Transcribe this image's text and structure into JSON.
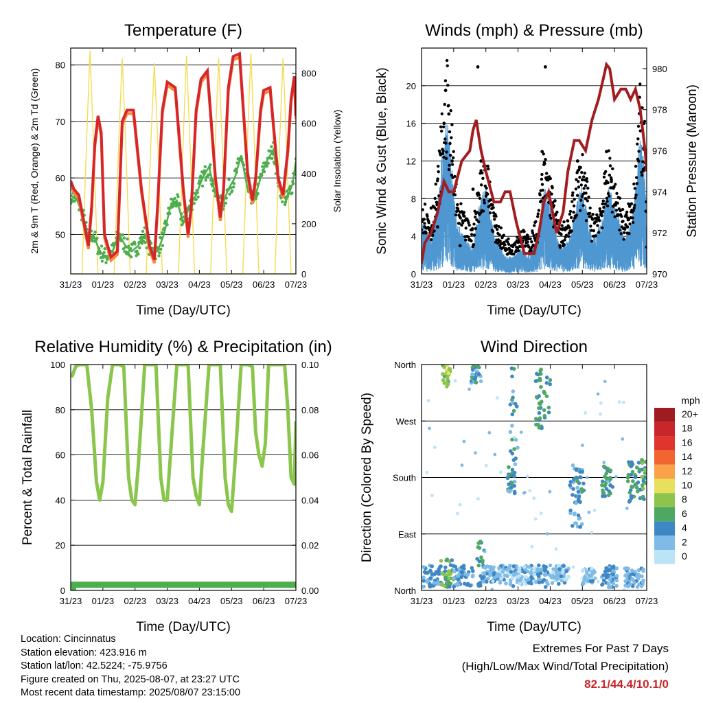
{
  "colors": {
    "red": "#d7262a",
    "orange": "#f58a3c",
    "green": "#4cae4c",
    "yellow": "#f5dc50",
    "blue": "#4f97d1",
    "black": "#000000",
    "maroon": "#a31c1f",
    "rh_green": "#8ac64c",
    "precip_green": "#4cae4c"
  },
  "footer": {
    "location": "Location: Cincinnatus",
    "elevation": "Station elevation: 423.916 m",
    "latlon": "Station lat/lon: 42.5224; -75.9756",
    "created": "Figure created on Thu, 2025-08-07, at 23:27 UTC",
    "timestamp": "Most recent data timestamp: 2025/08/07 23:15:00",
    "extremes_title_1": "Extremes For Past 7 Days",
    "extremes_title_2": "(High/Low/Max Wind/Total Precipitation)",
    "extremes_values": "82.1/44.4/10.1/0"
  },
  "chart_data": [
    {
      "id": "temperature",
      "type": "line",
      "title": "Temperature (F)",
      "xlabel": "Time (Day/UTC)",
      "ylabel": "2m & 9m T (Red, Orange) & 2m Td (Green)",
      "ylabel_right": "Solar Insolation (Yellow)",
      "x_ticks": [
        "31/23",
        "01/23",
        "02/23",
        "03/23",
        "04/23",
        "05/23",
        "06/23",
        "07/23"
      ],
      "xlim": [
        0,
        7
      ],
      "ylim": [
        43,
        83
      ],
      "y_ticks": [
        50,
        60,
        70,
        80
      ],
      "ylim_right": [
        0,
        900
      ],
      "y_ticks_right": [
        0,
        200,
        400,
        600,
        800
      ],
      "grid": true,
      "series": [
        {
          "id": "t2m",
          "x": [
            0,
            0.1,
            0.25,
            0.45,
            0.55,
            0.65,
            0.75,
            0.85,
            0.95,
            1.05,
            1.25,
            1.45,
            1.6,
            1.75,
            1.95,
            2.2,
            2.45,
            2.6,
            2.7,
            2.85,
            3.0,
            3.25,
            3.5,
            3.65,
            3.75,
            3.9,
            4.05,
            4.25,
            4.5,
            4.65,
            4.75,
            4.9,
            5.05,
            5.25,
            5.5,
            5.65,
            5.75,
            5.9,
            6.0,
            6.2,
            6.45,
            6.6,
            6.75,
            6.85,
            6.95,
            7.0
          ],
          "y": [
            59.5,
            58,
            57,
            51,
            48,
            55,
            66,
            71,
            68,
            50,
            46,
            47,
            70,
            72,
            72,
            58,
            48,
            45.5,
            55,
            72,
            77,
            76,
            58,
            50,
            55,
            72,
            77.5,
            79,
            60,
            53,
            58,
            76,
            81.5,
            82,
            61,
            56,
            60,
            72,
            75.5,
            76,
            60,
            57,
            65,
            74,
            78,
            71
          ]
        },
        {
          "id": "td2m",
          "x": [
            0,
            0.2,
            0.4,
            0.55,
            0.7,
            0.9,
            1.1,
            1.3,
            1.5,
            1.7,
            1.9,
            2.1,
            2.3,
            2.5,
            2.7,
            2.9,
            3.1,
            3.3,
            3.5,
            3.7,
            3.9,
            4.1,
            4.3,
            4.5,
            4.7,
            4.9,
            5.1,
            5.3,
            5.5,
            5.7,
            5.9,
            6.1,
            6.3,
            6.5,
            6.7,
            6.9,
            7.0
          ],
          "y": [
            57,
            56,
            53,
            49,
            50,
            47,
            46,
            47,
            50,
            48,
            47,
            48,
            50,
            47,
            47,
            50,
            55,
            56,
            52,
            55,
            57,
            60,
            62,
            57,
            55,
            58,
            60,
            64,
            58,
            56,
            60,
            63,
            65,
            58,
            56,
            59,
            63
          ]
        },
        {
          "id": "solar",
          "x": [
            0,
            0.35,
            0.5,
            0.6,
            0.7,
            0.85,
            1.35,
            1.5,
            1.6,
            1.7,
            1.85,
            2.35,
            2.5,
            2.6,
            2.7,
            2.85,
            3.35,
            3.5,
            3.6,
            3.7,
            3.85,
            4.35,
            4.5,
            4.6,
            4.7,
            4.85,
            5.35,
            5.5,
            5.6,
            5.7,
            5.85,
            6.35,
            6.5,
            6.6,
            6.7,
            6.85,
            7.0
          ],
          "y": [
            0,
            0,
            550,
            890,
            550,
            0,
            0,
            550,
            860,
            550,
            0,
            0,
            550,
            840,
            550,
            0,
            0,
            550,
            870,
            550,
            0,
            0,
            550,
            860,
            550,
            0,
            0,
            550,
            880,
            550,
            0,
            0,
            550,
            860,
            550,
            0,
            0
          ]
        }
      ]
    },
    {
      "id": "winds",
      "type": "line",
      "title": "Winds (mph) & Pressure (mb)",
      "xlabel": "Time (Day/UTC)",
      "ylabel": "Sonic Wind & Gust (Blue, Black)",
      "ylabel_right": "Station Pressure (Maroon)",
      "x_ticks": [
        "31/23",
        "01/23",
        "02/23",
        "03/23",
        "04/23",
        "05/23",
        "06/23",
        "07/23"
      ],
      "xlim": [
        0,
        7
      ],
      "ylim": [
        0,
        24
      ],
      "y_ticks": [
        0,
        4,
        8,
        12,
        16,
        20
      ],
      "ylim_right": [
        970,
        981
      ],
      "y_ticks_right": [
        970,
        972,
        974,
        976,
        978,
        980
      ],
      "grid": true,
      "series": [
        {
          "id": "wind",
          "x": [
            0,
            0.3,
            0.5,
            0.65,
            0.8,
            0.95,
            1.1,
            1.35,
            1.6,
            1.8,
            2.0,
            2.3,
            2.6,
            2.85,
            3.1,
            3.35,
            3.6,
            3.8,
            4.0,
            4.3,
            4.6,
            4.8,
            5.0,
            5.3,
            5.6,
            5.8,
            6.0,
            6.3,
            6.55,
            6.8,
            6.95,
            7.0
          ],
          "y": [
            3,
            2,
            4,
            7,
            9,
            6,
            3,
            2,
            1.5,
            4,
            5,
            2,
            1,
            1,
            1.5,
            1,
            2,
            5,
            4,
            1.5,
            2,
            4,
            5,
            2,
            3,
            5,
            4,
            2,
            3,
            8,
            6,
            1
          ]
        },
        {
          "id": "gust",
          "x": [
            0.1,
            0.3,
            0.5,
            0.7,
            0.75,
            0.85,
            0.95,
            1.2,
            1.6,
            1.75,
            1.85,
            2.3,
            2.8,
            3.3,
            3.75,
            3.85,
            3.9,
            4.4,
            4.85,
            5.0,
            5.1,
            5.5,
            5.75,
            5.9,
            6.4,
            6.75,
            6.9
          ],
          "y": [
            5,
            7,
            5,
            16,
            19.5,
            17,
            12,
            3,
            9,
            22,
            12,
            5,
            3,
            4,
            13,
            22,
            10,
            3,
            12,
            10,
            8,
            6,
            13,
            10,
            5,
            12,
            11
          ]
        },
        {
          "id": "pressure",
          "x": [
            0,
            0.1,
            0.3,
            0.5,
            0.7,
            0.85,
            1.0,
            1.25,
            1.5,
            1.6,
            1.7,
            1.85,
            2.0,
            2.25,
            2.45,
            2.6,
            2.75,
            2.95,
            3.2,
            3.5,
            3.65,
            3.8,
            3.95,
            4.2,
            4.4,
            4.55,
            4.75,
            4.9,
            5.1,
            5.3,
            5.5,
            5.65,
            5.75,
            5.85,
            6.0,
            6.2,
            6.35,
            6.5,
            6.65,
            6.8,
            6.95,
            7.0
          ],
          "y": [
            970.5,
            971.5,
            972,
            973,
            974.5,
            974,
            974,
            975.5,
            976,
            977,
            977.5,
            976,
            975,
            973.5,
            973.5,
            974,
            974,
            972.5,
            971,
            971,
            972,
            973.5,
            974,
            972,
            973,
            975,
            976.5,
            976.5,
            976,
            977.5,
            978.5,
            979.5,
            980.2,
            980,
            978.5,
            979,
            979,
            978.5,
            979,
            978,
            976,
            975
          ]
        }
      ]
    },
    {
      "id": "humidity",
      "type": "line",
      "title": "Relative Humidity (%) & Precipitation (in)",
      "xlabel": "Time (Day/UTC)",
      "ylabel": "Percent & Total Rainfall",
      "x_ticks": [
        "31/23",
        "01/23",
        "02/23",
        "03/23",
        "04/23",
        "05/23",
        "06/23",
        "07/23"
      ],
      "xlim": [
        0,
        7
      ],
      "ylim": [
        0,
        100
      ],
      "y_ticks": [
        0,
        20,
        40,
        60,
        80,
        100
      ],
      "ylim_right": [
        0,
        0.1
      ],
      "y_ticks_right": [
        "0.00",
        "0.02",
        "0.04",
        "0.06",
        "0.08",
        "0.10"
      ],
      "grid": true,
      "series": [
        {
          "id": "rh",
          "x": [
            0,
            0.05,
            0.15,
            0.25,
            0.4,
            0.5,
            0.65,
            0.8,
            0.9,
            1.0,
            1.15,
            1.3,
            1.5,
            1.65,
            1.8,
            1.9,
            2.0,
            2.1,
            2.3,
            2.5,
            2.65,
            2.8,
            2.9,
            3.0,
            3.1,
            3.3,
            3.5,
            3.65,
            3.8,
            3.9,
            4.0,
            4.1,
            4.3,
            4.5,
            4.65,
            4.8,
            4.9,
            5.0,
            5.1,
            5.3,
            5.5,
            5.65,
            5.75,
            5.85,
            5.95,
            6.05,
            6.15,
            6.3,
            6.5,
            6.65,
            6.75,
            6.85,
            6.95,
            7.0
          ],
          "y": [
            96,
            95,
            99,
            100,
            100,
            100,
            80,
            48,
            40,
            48,
            85,
            100,
            100,
            99,
            50,
            40,
            38,
            55,
            100,
            100,
            100,
            50,
            40,
            40,
            60,
            100,
            100,
            100,
            50,
            42,
            38,
            60,
            100,
            100,
            100,
            50,
            38,
            35,
            55,
            100,
            100,
            99,
            70,
            60,
            55,
            65,
            100,
            100,
            100,
            100,
            80,
            50,
            47,
            75
          ]
        },
        {
          "id": "precip",
          "x": [
            0,
            7
          ],
          "y": [
            0,
            0
          ]
        }
      ]
    },
    {
      "id": "direction",
      "type": "scatter",
      "title": "Wind Direction",
      "xlabel": "Time (Day/UTC)",
      "ylabel": "Direction (Colored By Speed)",
      "x_ticks": [
        "31/23",
        "01/23",
        "02/23",
        "03/23",
        "04/23",
        "05/23",
        "06/23",
        "07/23"
      ],
      "xlim": [
        0,
        7
      ],
      "ylim": [
        0,
        360
      ],
      "y_tick_values": [
        0,
        90,
        180,
        270,
        360
      ],
      "y_tick_labels": [
        "North",
        "East",
        "South",
        "West",
        "North"
      ],
      "grid": true,
      "legend": {
        "title": "mph",
        "labels": [
          "20+",
          "18",
          "16",
          "14",
          "12",
          "10",
          "8",
          "6",
          "4",
          "2",
          "0"
        ],
        "colors": [
          "#9e1b1f",
          "#c8262a",
          "#e0352c",
          "#f1652e",
          "#f9a24a",
          "#e8e05a",
          "#8cc44d",
          "#4ea864",
          "#3f87c4",
          "#7fbbe6",
          "#bde3f7"
        ],
        "placement": "right"
      },
      "clusters": [
        {
          "x0": 0.05,
          "x1": 0.6,
          "d0": 5,
          "d1": 40,
          "speed": 3
        },
        {
          "x0": 0.6,
          "x1": 1.0,
          "d0": 5,
          "d1": 50,
          "speed": 6
        },
        {
          "x0": 0.65,
          "x1": 0.9,
          "d0": 325,
          "d1": 360,
          "speed": 8
        },
        {
          "x0": 1.0,
          "x1": 1.6,
          "d0": 5,
          "d1": 40,
          "speed": 3
        },
        {
          "x0": 1.55,
          "x1": 1.85,
          "d0": 330,
          "d1": 360,
          "speed": 4
        },
        {
          "x0": 1.7,
          "x1": 1.95,
          "d0": 5,
          "d1": 80,
          "speed": 5
        },
        {
          "x0": 1.9,
          "x1": 2.6,
          "d0": 10,
          "d1": 40,
          "speed": 2
        },
        {
          "x0": 2.6,
          "x1": 3.0,
          "d0": 5,
          "d1": 40,
          "speed": 2
        },
        {
          "x0": 2.65,
          "x1": 2.9,
          "d0": 150,
          "d1": 200,
          "speed": 4
        },
        {
          "x0": 2.75,
          "x1": 3.0,
          "d0": 200,
          "d1": 360,
          "speed": 4
        },
        {
          "x0": 3.0,
          "x1": 3.6,
          "d0": 10,
          "d1": 40,
          "speed": 2
        },
        {
          "x0": 3.6,
          "x1": 3.95,
          "d0": 5,
          "d1": 40,
          "speed": 3
        },
        {
          "x0": 3.55,
          "x1": 4.0,
          "d0": 250,
          "d1": 360,
          "speed": 5
        },
        {
          "x0": 4.0,
          "x1": 4.6,
          "d0": 10,
          "d1": 40,
          "speed": 2
        },
        {
          "x0": 4.6,
          "x1": 5.0,
          "d0": 100,
          "d1": 200,
          "speed": 3
        },
        {
          "x0": 4.8,
          "x1": 5.05,
          "d0": 140,
          "d1": 200,
          "speed": 4
        },
        {
          "x0": 5.0,
          "x1": 5.4,
          "d0": 10,
          "d1": 35,
          "speed": 2
        },
        {
          "x0": 5.6,
          "x1": 5.95,
          "d0": 150,
          "d1": 200,
          "speed": 5
        },
        {
          "x0": 5.6,
          "x1": 6.1,
          "d0": 5,
          "d1": 40,
          "speed": 3
        },
        {
          "x0": 6.4,
          "x1": 6.95,
          "d0": 140,
          "d1": 205,
          "speed": 5
        },
        {
          "x0": 6.3,
          "x1": 6.9,
          "d0": 5,
          "d1": 35,
          "speed": 3
        },
        {
          "x0": 6.85,
          "x1": 7.0,
          "d0": 160,
          "d1": 210,
          "speed": 7
        }
      ]
    }
  ]
}
